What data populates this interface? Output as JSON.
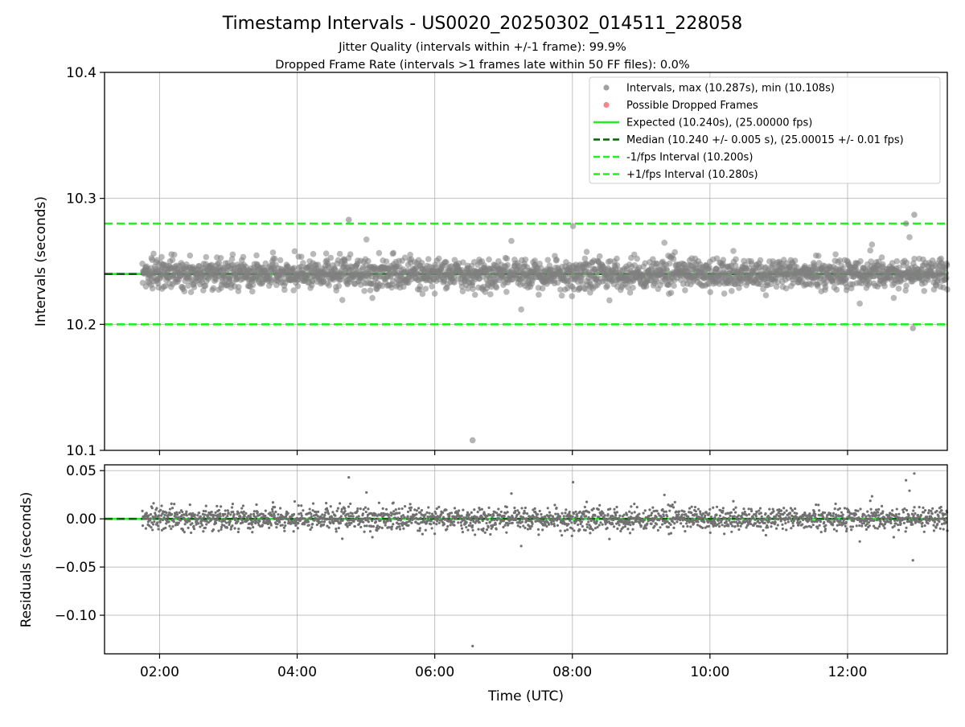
{
  "chart_data": [
    {
      "type": "scatter",
      "title": "Timestamp Intervals - US0020_20250302_014511_228058",
      "subtitles": [
        "Jitter Quality (intervals within +/-1 frame): 99.9%",
        "Dropped Frame Rate (intervals >1 frames late within 50 FF files): 0.0%"
      ],
      "xlabel": "",
      "ylabel": "Intervals (seconds)",
      "xlim": [
        1.2,
        13.45
      ],
      "ylim": [
        10.1,
        10.4
      ],
      "x_ticks": [
        2,
        4,
        6,
        8,
        10,
        12
      ],
      "y_ticks": [
        {
          "value": 10.1,
          "label": "10.1"
        },
        {
          "value": 10.2,
          "label": "10.2"
        },
        {
          "value": 10.3,
          "label": "10.3"
        },
        {
          "value": 10.4,
          "label": "10.4"
        }
      ],
      "grid": true,
      "legend_position": "top-right",
      "series": [
        {
          "name": "Intervals, max (10.287s), min (10.108s)",
          "kind": "scatter",
          "color": "#808080",
          "x_range": [
            1.75,
            13.45
          ],
          "center": 10.24,
          "spread": 0.006,
          "notable_points": [
            [
              6.55,
              10.108
            ],
            [
              12.97,
              10.287
            ],
            [
              4.75,
              10.283
            ],
            [
              12.85,
              10.28
            ],
            [
              12.95,
              10.197
            ]
          ]
        },
        {
          "name": "Possible Dropped Frames",
          "kind": "scatter",
          "color": "#f06060",
          "points": []
        },
        {
          "name": "Expected (10.240s), (25.00000 fps)",
          "kind": "hline",
          "value": 10.24,
          "color": "#22ee22",
          "style": "solid"
        },
        {
          "name": "Median (10.240 +/- 0.005 s), (25.00015 +/- 0.01 fps)",
          "kind": "hline",
          "value": 10.24,
          "color": "#006400",
          "style": "dashed"
        },
        {
          "name": "-1/fps Interval (10.200s)",
          "kind": "hline",
          "value": 10.2,
          "color": "#22ee22",
          "style": "dashed"
        },
        {
          "name": "+1/fps Interval (10.280s)",
          "kind": "hline",
          "value": 10.28,
          "color": "#22ee22",
          "style": "dashed"
        }
      ]
    },
    {
      "type": "scatter",
      "title": "",
      "xlabel": "Time (UTC)",
      "ylabel": "Residuals (seconds)",
      "xlim": [
        1.2,
        13.45
      ],
      "ylim": [
        -0.14,
        0.056
      ],
      "x_ticks": [
        {
          "value": 2,
          "label": "02:00"
        },
        {
          "value": 4,
          "label": "04:00"
        },
        {
          "value": 6,
          "label": "06:00"
        },
        {
          "value": 8,
          "label": "08:00"
        },
        {
          "value": 10,
          "label": "10:00"
        },
        {
          "value": 12,
          "label": "12:00"
        }
      ],
      "y_ticks": [
        {
          "value": 0.05,
          "label": "0.05"
        },
        {
          "value": 0.0,
          "label": "0.00"
        },
        {
          "value": -0.05,
          "label": "−0.05"
        },
        {
          "value": -0.1,
          "label": "−0.10"
        }
      ],
      "grid": true,
      "series": [
        {
          "kind": "scatter",
          "color": "#707070",
          "x_range": [
            1.75,
            13.45
          ],
          "center": 0.0,
          "spread": 0.006,
          "notable_points": [
            [
              6.55,
              -0.132
            ],
            [
              12.97,
              0.047
            ],
            [
              4.75,
              0.043
            ],
            [
              12.85,
              0.04
            ],
            [
              12.95,
              -0.043
            ]
          ]
        },
        {
          "kind": "hline",
          "value": 0.0,
          "color": "#22ee22",
          "style": "solid"
        },
        {
          "kind": "hline",
          "value": 0.0,
          "color": "#006400",
          "style": "dashed"
        }
      ]
    }
  ]
}
